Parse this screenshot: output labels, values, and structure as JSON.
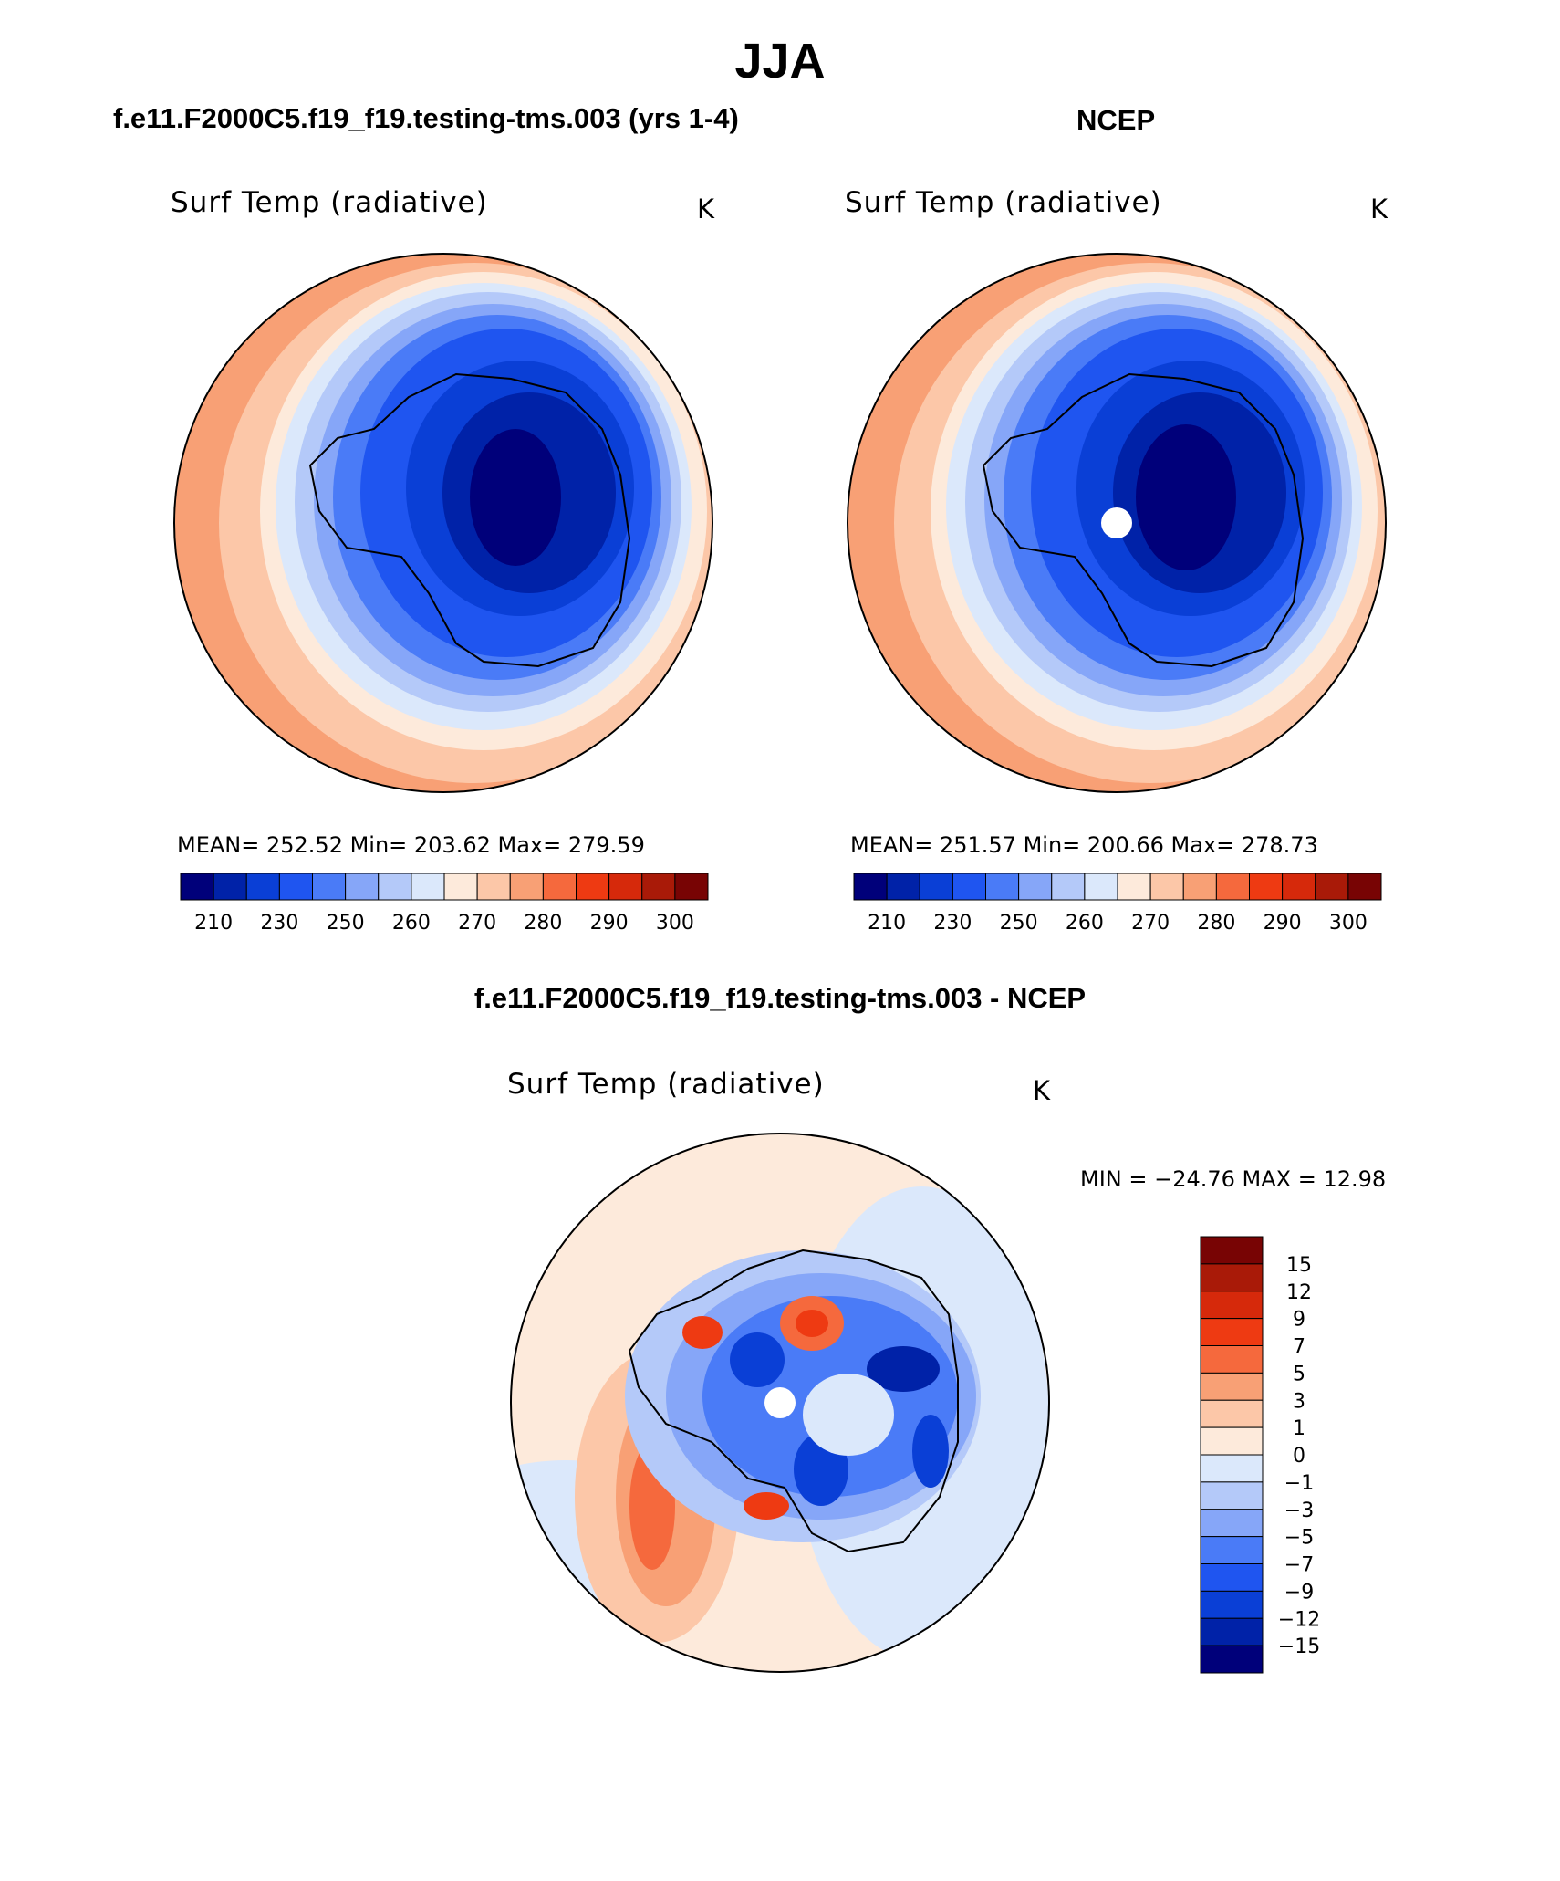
{
  "title": "JJA",
  "panels": {
    "model": {
      "header": "f.e11.F2000C5.f19_f19.testing-tms.003 (yrs 1-4)",
      "field_title": "Surf Temp (radiative)",
      "units": "K",
      "stats": "MEAN=  252.52   Min=  203.62   Max=  279.59"
    },
    "obs": {
      "header": "NCEP",
      "field_title": "Surf Temp (radiative)",
      "units": "K",
      "stats": "MEAN=  251.57   Min=  200.66   Max=  278.73"
    },
    "diff": {
      "header": "f.e11.F2000C5.f19_f19.testing-tms.003 - NCEP",
      "field_title": "Surf Temp (radiative)",
      "units": "K",
      "stats": "MIN = −24.76 MAX =   12.98"
    }
  },
  "colorbar_abs": {
    "colors": [
      "#00007a",
      "#0022a8",
      "#0a3fd6",
      "#1f55f0",
      "#4a7bf7",
      "#86a6f8",
      "#b4c9f9",
      "#dbe8fb",
      "#fdeadb",
      "#fcc7a8",
      "#f8a075",
      "#f5693d",
      "#ee3a12",
      "#d6290b",
      "#a91a08",
      "#780404"
    ],
    "labels": [
      "210",
      "230",
      "250",
      "260",
      "270",
      "280",
      "290",
      "300"
    ]
  },
  "colorbar_diff": {
    "colors": [
      "#00007a",
      "#0022a8",
      "#0a3fd6",
      "#1f55f0",
      "#4a7bf7",
      "#86a6f8",
      "#b4c9f9",
      "#dbe8fb",
      "#fdeadb",
      "#fcc7a8",
      "#f8a075",
      "#f5693d",
      "#ee3a12",
      "#d6290b",
      "#a91a08",
      "#780404"
    ],
    "labels": [
      "15",
      "12",
      "9",
      "7",
      "5",
      "3",
      "1",
      "0",
      "−1",
      "−3",
      "−5",
      "−7",
      "−9",
      "−12",
      "−15"
    ]
  }
}
